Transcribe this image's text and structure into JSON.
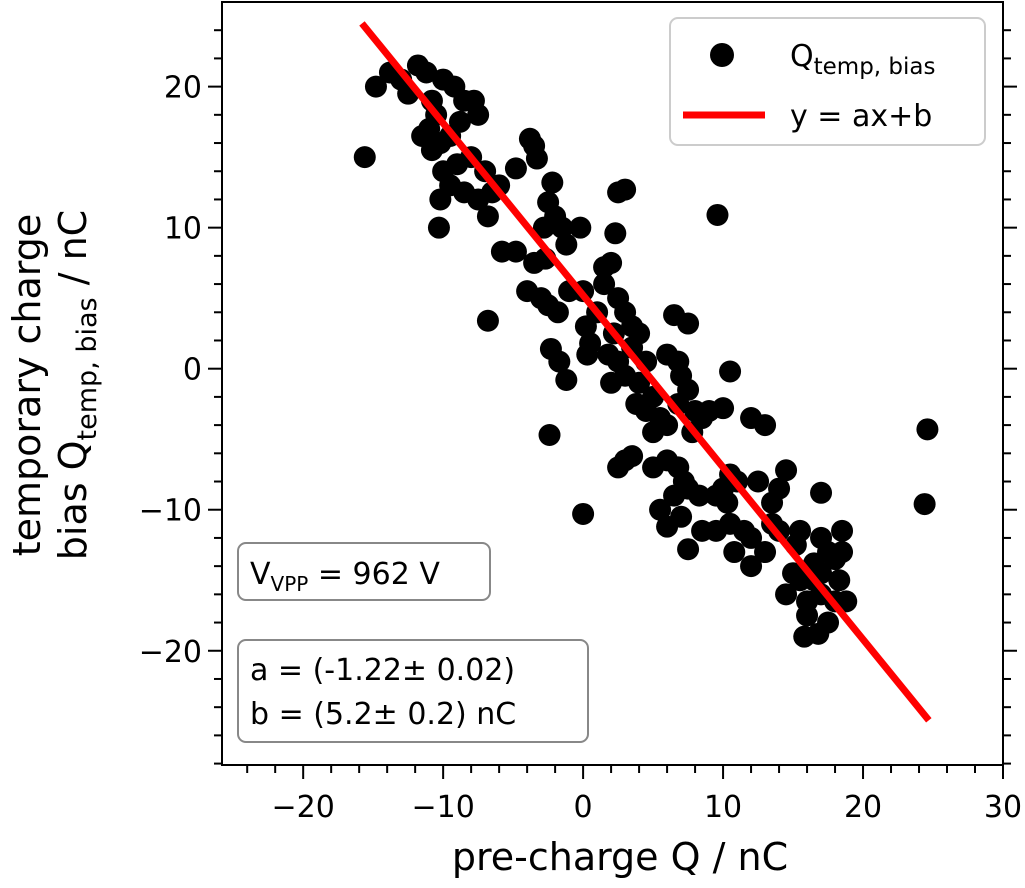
{
  "chart_data": {
    "type": "scatter",
    "xlabel": "pre-charge Q / nC",
    "ylabel": [
      "temporary charge",
      "bias Q",
      "temp, bias",
      " / nC"
    ],
    "xlim": [
      -25.8,
      30
    ],
    "ylim": [
      -28.1,
      26
    ],
    "xticks": [
      {
        "value": -20,
        "label": "−20"
      },
      {
        "value": -10,
        "label": "−10"
      },
      0,
      10,
      20,
      30
    ],
    "yticks": [
      {
        "value": -20,
        "label": "−20"
      },
      {
        "value": -10,
        "label": "−10"
      },
      0,
      10,
      20
    ],
    "xminorticks": [
      -24,
      -22,
      -18,
      -16,
      -14,
      -12,
      -8,
      -6,
      -4,
      -2,
      2,
      4,
      6,
      8,
      12,
      14,
      16,
      18,
      22,
      24,
      26,
      28
    ],
    "yminorticks": [
      -28,
      -26,
      -24,
      -22,
      -18,
      -16,
      -14,
      -12,
      -8,
      -6,
      -4,
      -2,
      2,
      4,
      6,
      8,
      12,
      14,
      16,
      18,
      22,
      24
    ],
    "legend": "upper right",
    "annotations": [
      [
        "V",
        "VPP",
        " = 962 V"
      ],
      [
        "a = (-1.22± 0.02)",
        "b = (5.2± 0.2) nC"
      ]
    ],
    "series": [
      {
        "name": "Q",
        "name_sub": "temp, bias",
        "kind": "points",
        "color": "#000000",
        "x": [
          -15.6,
          -14.8,
          -13.8,
          -13.0,
          -12.5,
          -11.8,
          -11.2,
          -10.8,
          -10.0,
          -9.2,
          -8.5,
          -7.8,
          -7.5,
          -10.5,
          -11.0,
          -11.5,
          -10.2,
          -9.5,
          -8.8,
          -10.8,
          -10.0,
          -9.0,
          -8.0,
          -7.0,
          -6.0,
          -10.2,
          -9.5,
          -8.5,
          -7.5,
          -6.5,
          -6.8,
          -10.3,
          -4.8,
          -3.8,
          -3.5,
          -3.3,
          -2.2,
          -2.5,
          -2.0,
          -1.5,
          -2.8,
          -5.8,
          -4.8,
          -3.5,
          -2.7,
          -1.2,
          -0.2,
          -4.0,
          -3.0,
          -2.5,
          -1.8,
          -1.0,
          0.0,
          -6.8,
          -2.3,
          -1.7,
          -1.2,
          -2.4,
          0.2,
          0.5,
          0.3,
          1.0,
          1.5,
          2.0,
          1.5,
          2.5,
          3.0,
          3.5,
          2.2,
          1.8,
          2.5,
          3.0,
          2.0,
          4.0,
          3.5,
          4.5,
          4.0,
          3.8,
          4.5,
          5.0,
          5.5,
          5.0,
          6.0,
          6.5,
          7.5,
          6.0,
          6.8,
          7.0,
          7.5,
          6.8,
          8.0,
          8.5,
          9.0,
          7.8,
          2.5,
          3.0,
          2.3,
          9.6,
          10.5,
          10.0,
          2.5,
          3.0,
          3.5,
          5.0,
          6.0,
          6.8,
          7.2,
          7.5,
          6.5,
          7.0,
          6.0,
          7.5,
          0.0,
          9.5,
          10.0,
          10.5,
          11.0,
          10.3,
          9.5,
          10.5,
          11.5,
          10.8,
          12.0,
          12.0,
          13.0,
          13.5,
          14.0,
          14.5,
          13.5,
          12.5,
          12.0,
          13.0,
          15.5,
          15.0,
          14.5,
          15.5,
          16.0,
          16.5,
          16.0,
          17.0,
          16.8,
          17.5,
          17.0,
          17.5,
          17.0,
          18.0,
          18.5,
          18.3,
          18.0,
          18.8,
          18.5,
          17.0,
          24.6,
          24.4,
          8.3,
          8.5,
          5.5,
          14.0,
          15.2,
          16.5,
          15.8
        ],
        "values": [
          15.0,
          20.0,
          21.0,
          20.5,
          19.5,
          21.5,
          21.0,
          19.0,
          20.5,
          20.0,
          19.0,
          19.0,
          18.0,
          18.0,
          17.0,
          16.5,
          16.0,
          16.5,
          17.5,
          15.5,
          14.0,
          14.5,
          15.0,
          14.0,
          13.0,
          12.0,
          13.0,
          12.5,
          12.0,
          12.5,
          10.8,
          10.0,
          14.2,
          16.3,
          15.8,
          14.9,
          13.2,
          11.8,
          10.8,
          10.0,
          10.0,
          8.3,
          8.3,
          7.5,
          7.8,
          8.8,
          10.0,
          5.5,
          5.0,
          4.5,
          4.0,
          5.5,
          5.5,
          3.4,
          1.4,
          0.5,
          -0.8,
          -4.7,
          3.0,
          1.8,
          1.0,
          4.0,
          6.0,
          7.5,
          7.2,
          5.0,
          4.0,
          3.0,
          2.5,
          1.0,
          0.5,
          -0.5,
          -1.0,
          2.5,
          1.5,
          0.5,
          -1.0,
          -2.5,
          -3.0,
          -2.0,
          -3.5,
          -4.5,
          -4.0,
          3.8,
          3.2,
          1.0,
          0.5,
          -0.5,
          -1.5,
          -2.5,
          -3.0,
          -3.5,
          -3.0,
          -4.5,
          12.5,
          12.7,
          9.6,
          10.9,
          -0.2,
          -2.8,
          -7.0,
          -6.5,
          -6.2,
          -7.0,
          -6.5,
          -7.0,
          -8.0,
          -8.5,
          -9.0,
          -10.5,
          -11.2,
          -12.8,
          -10.3,
          -9.0,
          -8.5,
          -7.5,
          -8.0,
          -9.5,
          -11.5,
          -11.0,
          -11.5,
          -13.0,
          -12.0,
          -14.0,
          -13.0,
          -9.5,
          -8.5,
          -7.2,
          -11.0,
          -8.0,
          -3.5,
          -4.0,
          -11.5,
          -14.5,
          -16.0,
          -15.0,
          -16.5,
          -15.0,
          -17.5,
          -16.0,
          -18.8,
          -18.0,
          -14.5,
          -13.0,
          -12.0,
          -13.5,
          -13.0,
          -15.0,
          -16.5,
          -16.5,
          -11.5,
          -8.8,
          -4.3,
          -9.6,
          -9.0,
          -11.5,
          -10.0,
          -11.5,
          -12.5,
          -13.8,
          -19.0
        ]
      },
      {
        "name": "y = ax+b",
        "kind": "line",
        "color": "#ff0000",
        "x": [
          -15.8,
          24.7
        ],
        "values": [
          24.48,
          -24.93
        ]
      }
    ]
  }
}
